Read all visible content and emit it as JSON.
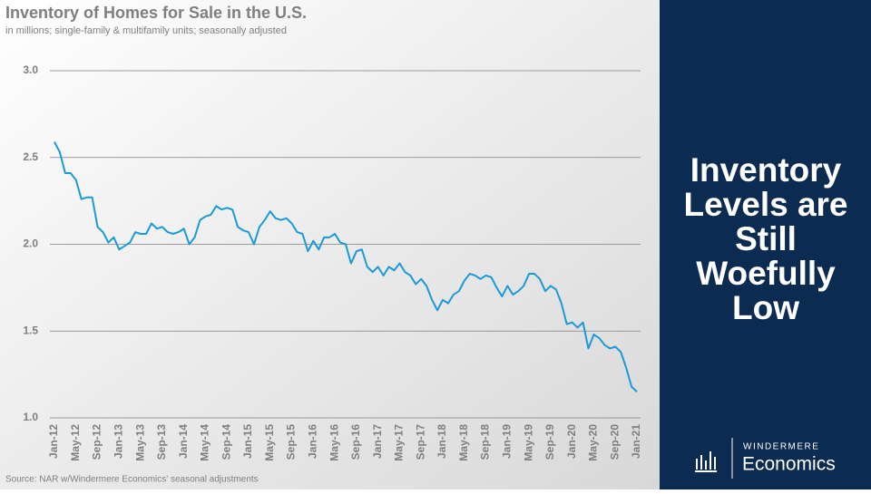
{
  "chart_data": {
    "type": "line",
    "title": "Inventory of Homes for Sale in the U.S.",
    "subtitle": "in millions; single-family & multifamily units; seasonally adjusted",
    "source": "Source: NAR w/Windermere Economics' seasonal adjustments",
    "categories": [
      "Jan-12",
      null,
      null,
      null,
      "May-12",
      null,
      null,
      null,
      "Sep-12",
      null,
      null,
      null,
      "Jan-13",
      null,
      null,
      null,
      "May-13",
      null,
      null,
      null,
      "Sep-13",
      null,
      null,
      null,
      "Jan-14",
      null,
      null,
      null,
      "May-14",
      null,
      null,
      null,
      "Sep-14",
      null,
      null,
      null,
      "Jan-15",
      null,
      null,
      null,
      "May-15",
      null,
      null,
      null,
      "Sep-15",
      null,
      null,
      null,
      "Jan-16",
      null,
      null,
      null,
      "May-16",
      null,
      null,
      null,
      "Sep-16",
      null,
      null,
      null,
      "Jan-17",
      null,
      null,
      null,
      "May-17",
      null,
      null,
      null,
      "Sep-17",
      null,
      null,
      null,
      "Jan-18",
      null,
      null,
      null,
      "May-18",
      null,
      null,
      null,
      "Sep-18",
      null,
      null,
      null,
      "Jan-19",
      null,
      null,
      null,
      "May-19",
      null,
      null,
      null,
      "Sep-19",
      null,
      null,
      null,
      "Jan-20",
      null,
      null,
      null,
      "May-20",
      null,
      null,
      null,
      "Sep-20",
      null,
      null,
      null,
      "Jan-21"
    ],
    "series": [
      {
        "color": "#1a9ad6",
        "values": [
          2.59,
          2.53,
          2.41,
          2.41,
          2.37,
          2.26,
          2.27,
          2.27,
          2.1,
          2.07,
          2.01,
          2.04,
          1.97,
          1.99,
          2.01,
          2.07,
          2.06,
          2.06,
          2.12,
          2.09,
          2.1,
          2.07,
          2.06,
          2.07,
          2.09,
          2.0,
          2.04,
          2.14,
          2.16,
          2.17,
          2.22,
          2.2,
          2.21,
          2.2,
          2.1,
          2.08,
          2.07,
          2.0,
          2.1,
          2.14,
          2.19,
          2.15,
          2.14,
          2.15,
          2.12,
          2.07,
          2.06,
          1.96,
          2.02,
          1.97,
          2.04,
          2.04,
          2.06,
          2.01,
          2.0,
          1.89,
          1.96,
          1.97,
          1.87,
          1.84,
          1.87,
          1.82,
          1.87,
          1.85,
          1.89,
          1.84,
          1.82,
          1.77,
          1.8,
          1.76,
          1.68,
          1.62,
          1.68,
          1.66,
          1.71,
          1.73,
          1.79,
          1.83,
          1.82,
          1.8,
          1.82,
          1.81,
          1.75,
          1.7,
          1.76,
          1.71,
          1.73,
          1.76,
          1.83,
          1.83,
          1.8,
          1.73,
          1.76,
          1.74,
          1.66,
          1.54,
          1.55,
          1.52,
          1.55,
          1.4,
          1.48,
          1.46,
          1.42,
          1.4,
          1.41,
          1.38,
          1.29,
          1.18,
          1.15
        ]
      }
    ],
    "ylim": [
      1,
      3
    ],
    "yticks": [
      {
        "value": 1,
        "label": "1.0"
      },
      {
        "value": 1.5,
        "label": "1.5"
      },
      {
        "value": 2,
        "label": "2.0"
      },
      {
        "value": 2.5,
        "label": "2.5"
      },
      {
        "value": 3,
        "label": "3.0"
      }
    ],
    "grid": true
  },
  "panel": {
    "headline": [
      "Inventory",
      "Levels are",
      "Still",
      "Woefully",
      "Low"
    ],
    "brand": "WINDERMERE",
    "product": "Economics"
  }
}
